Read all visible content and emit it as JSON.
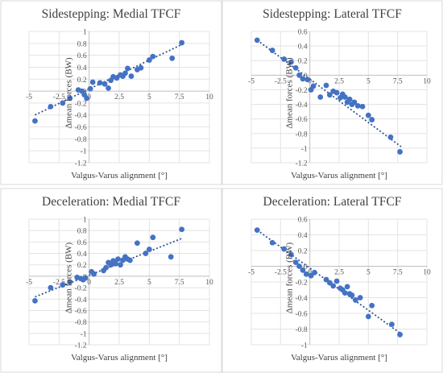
{
  "chart_data": [
    {
      "type": "scatter",
      "title": "Sidestepping: Medial TFCF",
      "xlabel": "Valgus-Varus alignment [°]",
      "ylabel": "Δmean forces (BW)",
      "xlim": [
        -5,
        10
      ],
      "ylim": [
        -1.2,
        1.0
      ],
      "xticks": [
        -5,
        -2.5,
        0,
        2.5,
        5,
        7.5,
        10
      ],
      "xtick_labels": [
        "-5",
        "-2.5",
        "0",
        "2.5",
        "5",
        "7.5",
        "10"
      ],
      "yticks": [
        1.0,
        0.8,
        0.6,
        0.4,
        0.2,
        0,
        -0.2,
        -0.4,
        -0.6,
        -0.8,
        -1,
        -1.2
      ],
      "ytick_labels": [
        "1",
        "0.8",
        "0.6",
        "0.4",
        "0.2",
        "0",
        "-0.2",
        "-0.4",
        "-0.6",
        "-0.8",
        "-1",
        "-1.2"
      ],
      "grid": true,
      "trendline": {
        "x": [
          -4.5,
          7.8
        ],
        "y": [
          -0.4,
          0.79
        ]
      },
      "x": [
        -4.5,
        -3.2,
        -2.2,
        -1.6,
        -0.9,
        -0.6,
        -0.4,
        -0.2,
        0.1,
        0.3,
        0.9,
        1.3,
        1.6,
        1.8,
        2.0,
        2.3,
        2.6,
        2.8,
        3.0,
        3.2,
        3.5,
        4.0,
        4.3,
        5.0,
        5.3,
        6.9,
        7.7
      ],
      "y": [
        -0.5,
        -0.26,
        -0.2,
        -0.12,
        0.02,
        0.0,
        -0.06,
        -0.12,
        0.04,
        0.15,
        0.14,
        0.12,
        0.05,
        0.18,
        0.24,
        0.22,
        0.27,
        0.25,
        0.3,
        0.38,
        0.25,
        0.36,
        0.39,
        0.52,
        0.58,
        0.55,
        0.81
      ]
    },
    {
      "type": "scatter",
      "title": "Sidestepping: Lateral TFCF",
      "xlabel": "Valgus-Varus alignment [°]",
      "ylabel": "Δmean forces (BW)",
      "xlim": [
        -5,
        10
      ],
      "ylim": [
        -1.2,
        0.6
      ],
      "xticks": [
        -5,
        -2.5,
        0,
        2.5,
        5,
        7.5,
        10
      ],
      "xtick_labels": [
        "-5",
        "-2.5",
        "0",
        "2.5",
        "5",
        "7.5",
        "10"
      ],
      "yticks": [
        0.6,
        0.4,
        0.2,
        0,
        -0.2,
        -0.4,
        -0.6,
        -0.8,
        -1,
        -1.2
      ],
      "ytick_labels": [
        "0.6",
        "0.4",
        "0.2",
        "0",
        "-0.2",
        "-0.4",
        "-0.6",
        "-0.8",
        "-1",
        "-1.2"
      ],
      "grid": true,
      "trendline": {
        "x": [
          -4.5,
          7.8
        ],
        "y": [
          0.48,
          -0.98
        ]
      },
      "x": [
        -4.5,
        -3.2,
        -2.2,
        -1.6,
        -1.2,
        -0.9,
        -0.6,
        -0.2,
        0.1,
        0.3,
        0.9,
        1.4,
        1.7,
        2.0,
        2.3,
        2.6,
        2.8,
        3.0,
        3.2,
        3.4,
        3.6,
        3.8,
        4.1,
        4.5,
        5.0,
        5.3,
        6.9,
        7.7
      ],
      "y": [
        0.48,
        0.34,
        0.22,
        0.18,
        0.1,
        0.0,
        -0.05,
        -0.06,
        -0.2,
        -0.15,
        -0.3,
        -0.14,
        -0.27,
        -0.22,
        -0.24,
        -0.31,
        -0.26,
        -0.3,
        -0.37,
        -0.33,
        -0.4,
        -0.37,
        -0.42,
        -0.43,
        -0.55,
        -0.61,
        -0.85,
        -1.05
      ]
    },
    {
      "type": "scatter",
      "title": "Deceleration: Medial TFCF",
      "xlabel": "Valgus-Varus alignment [°]",
      "ylabel": "Δmean forces (BW)",
      "xlim": [
        -5,
        10
      ],
      "ylim": [
        -1.2,
        1.0
      ],
      "xticks": [
        -5,
        -2.5,
        0,
        2.5,
        5,
        7.5,
        10
      ],
      "xtick_labels": [
        "-5",
        "-2.5",
        "0",
        "2.5",
        "5",
        "7.5",
        "10"
      ],
      "yticks": [
        1.0,
        0.8,
        0.6,
        0.4,
        0.2,
        0,
        -0.2,
        -0.4,
        -0.6,
        -0.8,
        -1,
        -1.2
      ],
      "ytick_labels": [
        "1",
        "0.8",
        "0.6",
        "0.4",
        "0.2",
        "0",
        "-0.2",
        "-0.4",
        "-0.6",
        "-0.8",
        "-1",
        "-1.2"
      ],
      "grid": true,
      "trendline": {
        "x": [
          -4.5,
          7.8
        ],
        "y": [
          -0.36,
          0.67
        ]
      },
      "x": [
        -4.5,
        -3.2,
        -2.2,
        -1.6,
        -1.0,
        -0.7,
        -0.5,
        -0.3,
        0.2,
        0.4,
        1.2,
        1.4,
        1.6,
        1.8,
        2.0,
        2.2,
        2.4,
        2.6,
        2.8,
        3.0,
        3.2,
        3.4,
        4.0,
        4.7,
        5.0,
        5.3,
        6.8,
        7.7
      ],
      "y": [
        -0.43,
        -0.2,
        -0.15,
        -0.1,
        -0.02,
        -0.04,
        -0.06,
        -0.03,
        0.08,
        0.04,
        0.1,
        0.15,
        0.24,
        0.2,
        0.27,
        0.22,
        0.3,
        0.2,
        0.28,
        0.34,
        0.3,
        0.28,
        0.58,
        0.4,
        0.47,
        0.68,
        0.34,
        0.82
      ]
    },
    {
      "type": "scatter",
      "title": "Deceleration: Lateral TFCF",
      "xlabel": "Valgus-Varus alignment [°]",
      "ylabel": "Δmean forces (BW)",
      "xlim": [
        -5,
        10
      ],
      "ylim": [
        -1.0,
        0.6
      ],
      "xticks": [
        -5,
        -2.5,
        0,
        2.5,
        5,
        7.5,
        10
      ],
      "xtick_labels": [
        "-5",
        "-2.5",
        "0",
        "2.5",
        "5",
        "7.5",
        "10"
      ],
      "yticks": [
        0.6,
        0.4,
        0.2,
        0,
        -0.2,
        -0.4,
        -0.6,
        -0.8,
        -1
      ],
      "ytick_labels": [
        "0.6",
        "0.4",
        "0.2",
        "0",
        "-0.2",
        "-0.4",
        "-0.6",
        "-0.8",
        "-1"
      ],
      "grid": true,
      "trendline": {
        "x": [
          -4.5,
          7.8
        ],
        "y": [
          0.46,
          -0.86
        ]
      },
      "x": [
        -4.5,
        -3.2,
        -2.2,
        -1.6,
        -1.2,
        -0.9,
        -0.6,
        -0.3,
        0.1,
        0.4,
        1.4,
        1.7,
        2.0,
        2.3,
        2.6,
        2.8,
        3.0,
        3.2,
        3.4,
        3.6,
        3.9,
        4.3,
        5.0,
        5.3,
        7.0,
        7.7
      ],
      "y": [
        0.46,
        0.3,
        0.22,
        0.15,
        0.05,
        0.0,
        -0.05,
        -0.1,
        -0.12,
        -0.08,
        -0.17,
        -0.21,
        -0.25,
        -0.19,
        -0.28,
        -0.3,
        -0.34,
        -0.26,
        -0.35,
        -0.37,
        -0.43,
        -0.4,
        -0.64,
        -0.5,
        -0.74,
        -0.87
      ]
    }
  ]
}
